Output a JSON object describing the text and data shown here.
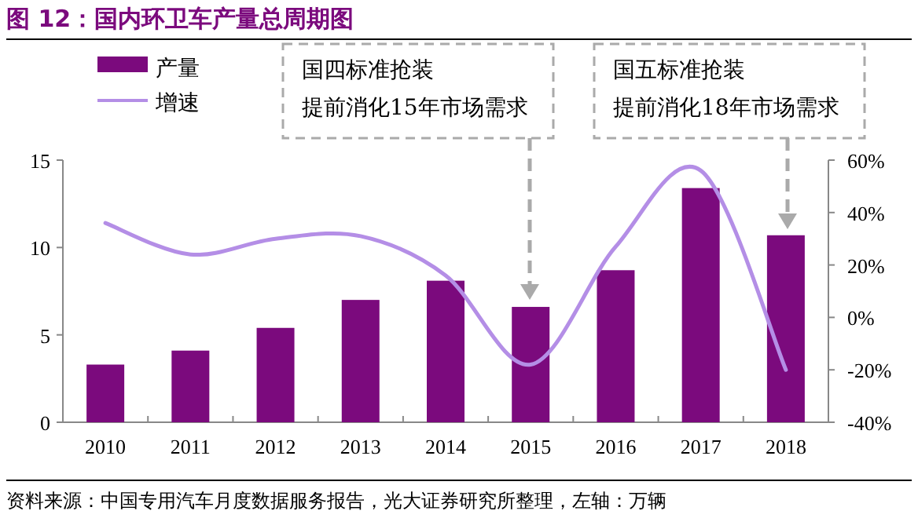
{
  "chart_data": {
    "type": "bar",
    "title": "图 12：国内环卫车产量总周期图",
    "categories": [
      "2010",
      "2011",
      "2012",
      "2013",
      "2014",
      "2015",
      "2016",
      "2017",
      "2018"
    ],
    "series": [
      {
        "name": "产量",
        "color": "#7b0a7d",
        "values": [
          3.3,
          4.1,
          5.4,
          7.0,
          8.1,
          6.6,
          8.7,
          13.4,
          10.7
        ]
      },
      {
        "name": "增速",
        "type": "line",
        "axis": "y2",
        "color": "#b48ee6",
        "values": [
          36,
          24,
          30,
          31,
          16,
          -18,
          27,
          56,
          -20
        ]
      }
    ],
    "ylim": [
      0,
      15
    ],
    "yticks": [
      0,
      5,
      10,
      15
    ],
    "y2lim": [
      -40,
      60
    ],
    "y2ticks": [
      {
        "value": -40,
        "label": "-40%"
      },
      {
        "value": -20,
        "label": "-20%"
      },
      {
        "value": 0,
        "label": "0%"
      },
      {
        "value": 20,
        "label": "20%"
      },
      {
        "value": 40,
        "label": "40%"
      },
      {
        "value": 60,
        "label": "60%"
      }
    ],
    "legend": "top left",
    "grid": false,
    "annotations": [
      "国四标准抢装",
      "提前消化15年市场需求",
      "国五标准抢装",
      "提前消化18年市场需求",
      "资料来源：中国专用汽车月度数据服务报告，光大证券研究所整理，左轴：万辆"
    ]
  }
}
